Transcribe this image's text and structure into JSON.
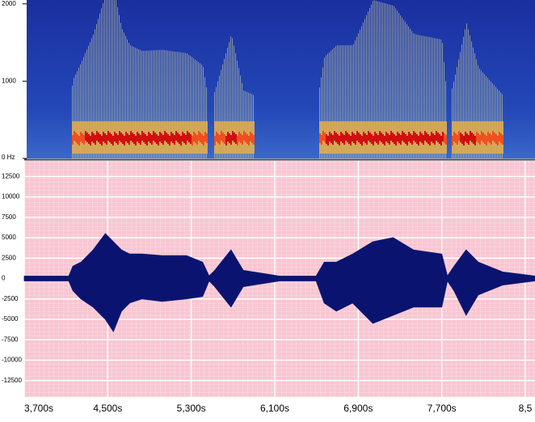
{
  "chart_data": [
    {
      "type": "spectrogram",
      "ylim": [
        0,
        2050
      ],
      "yticks": [
        2000,
        1000,
        {
          "value": 0,
          "label": "0 Hz"
        }
      ]
    },
    {
      "type": "waveform",
      "x": [
        3700,
        4127,
        4166,
        4244,
        4360,
        4477,
        4554,
        4632,
        4710,
        4827,
        5021,
        5254,
        5409,
        5471,
        5525,
        5681,
        5798,
        6147,
        6496,
        6574,
        6690,
        6846,
        7040,
        7234,
        7429,
        7700,
        7754,
        7817,
        7933,
        8050,
        8283,
        8593
      ],
      "series": [
        {
          "color": "#0a1470",
          "values": [
            300,
            300,
            1500,
            2000,
            3500,
            5500,
            4500,
            3500,
            3000,
            3000,
            2800,
            2800,
            2000,
            300,
            1000,
            3500,
            1000,
            300,
            300,
            2000,
            2000,
            3000,
            4500,
            5000,
            3500,
            3000,
            300,
            1500,
            3500,
            2000,
            800,
            300
          ]
        },
        {
          "color": "#0a1470",
          "values": [
            -300,
            -300,
            -1500,
            -2500,
            -3500,
            -5000,
            -6500,
            -4000,
            -3000,
            -2500,
            -2800,
            -2500,
            -2200,
            -300,
            -1000,
            -3500,
            -1000,
            -300,
            -300,
            -3000,
            -4000,
            -3000,
            -5500,
            -4500,
            -3500,
            -3500,
            -300,
            -1500,
            -4500,
            -2000,
            -800,
            -300
          ]
        }
      ],
      "xlim": [
        3700,
        8593
      ],
      "xticks": [
        {
          "value": 3700,
          "label": "3,700s"
        },
        {
          "value": 4500,
          "label": "4,500s"
        },
        {
          "value": 5300,
          "label": "5,300s"
        },
        {
          "value": 6100,
          "label": "6,100s"
        },
        {
          "value": 6900,
          "label": "6,900s"
        },
        {
          "value": 7700,
          "label": "7,700s"
        },
        {
          "value": 8500,
          "label": "8,5"
        }
      ],
      "ylim": [
        -14500,
        14400
      ],
      "yticks": [
        12500,
        10000,
        7500,
        5000,
        2500,
        0,
        -2500,
        -5000,
        -7500,
        -10000,
        -12500
      ],
      "grid": true
    }
  ]
}
